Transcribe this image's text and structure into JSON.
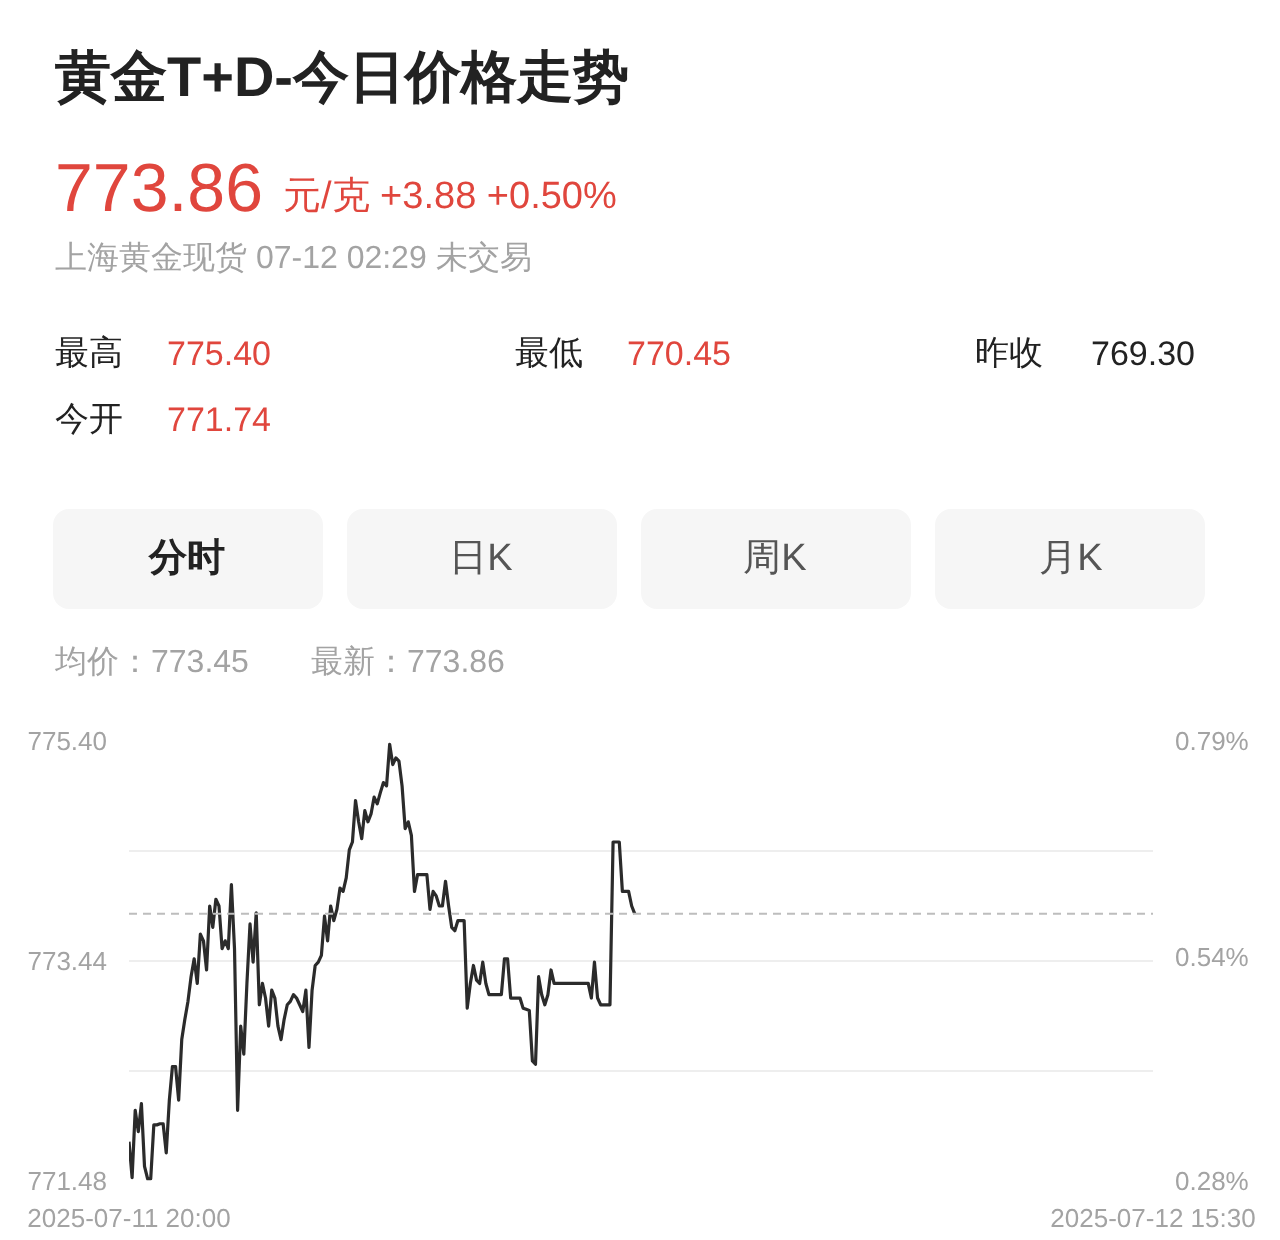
{
  "chart_data": {
    "type": "line",
    "title": "黄金T+D-今日价格走势",
    "subtitle": "上海黄金现货 07-12 02:29 未交易",
    "annotations": [
      "773.86",
      "元/克 +3.88 +0.50%",
      "最高",
      "775.40",
      "最低",
      "770.45",
      "昨收",
      "769.30",
      "今开",
      "771.74",
      "分时",
      "日K",
      "周K",
      "月K",
      "均价：773.45",
      "最新：773.86"
    ],
    "categories": [
      "2025-07-11 20:00",
      null,
      null,
      null,
      null,
      null,
      null,
      null,
      null,
      null,
      null,
      null,
      null,
      null,
      null,
      null,
      null,
      null,
      null,
      null,
      null,
      null,
      null,
      null,
      null,
      null,
      null,
      null,
      null,
      null,
      null,
      null,
      null,
      null,
      null,
      null,
      null,
      null,
      null,
      null,
      null,
      null,
      null,
      null,
      null,
      null,
      null,
      null,
      null,
      null,
      null,
      null,
      null,
      null,
      null,
      null,
      null,
      null,
      null,
      null,
      null,
      null,
      null,
      null,
      null,
      null,
      null,
      null,
      null,
      null,
      null,
      null,
      null,
      null,
      null,
      null,
      null,
      null,
      null,
      null,
      null,
      null,
      null,
      null,
      null,
      null,
      null,
      null,
      null,
      null,
      null,
      null,
      null,
      null,
      null,
      null,
      null,
      null,
      null,
      null,
      null,
      null,
      null,
      null,
      null,
      null,
      null,
      null,
      null,
      null,
      null,
      null,
      null,
      null,
      null,
      null,
      null,
      null,
      null,
      null,
      null,
      null,
      null,
      null,
      null,
      null,
      null,
      null,
      null,
      null,
      null,
      null,
      null,
      null,
      null,
      null,
      null,
      null,
      null,
      null,
      null,
      null,
      null,
      null,
      null,
      null,
      null,
      null,
      null,
      null,
      null,
      null,
      null,
      null,
      null,
      null,
      null,
      null,
      null,
      null,
      null,
      null,
      null,
      null,
      null,
      null,
      null,
      null,
      null,
      null,
      null,
      null,
      null,
      null,
      null,
      null,
      null,
      null,
      null,
      null,
      null,
      null,
      null,
      null,
      null,
      null,
      null,
      null,
      null,
      null,
      null,
      null,
      null,
      null,
      null,
      null,
      null,
      null,
      null,
      null,
      null,
      null,
      null,
      null,
      null,
      null,
      null,
      null,
      null,
      null,
      null,
      null,
      null,
      null,
      null,
      null,
      null,
      null,
      null,
      null,
      null,
      null,
      null,
      null,
      null,
      null,
      null,
      null,
      null,
      null,
      null,
      null,
      null,
      null,
      null,
      null,
      null,
      null,
      null,
      null,
      null,
      null,
      null,
      null,
      null,
      null,
      null,
      null,
      null,
      null,
      null,
      null,
      null,
      null,
      null,
      null,
      null,
      null,
      null,
      null,
      null,
      null,
      null,
      null,
      null,
      null,
      null,
      null,
      null,
      null,
      null,
      null,
      null,
      null,
      null,
      null,
      null,
      null,
      null,
      null,
      null,
      null,
      null,
      null,
      null,
      null,
      null,
      null,
      null,
      null,
      null,
      null,
      null,
      null,
      null,
      null,
      null,
      null,
      null,
      null,
      null,
      null,
      null,
      null,
      null,
      null,
      null,
      null,
      null,
      null,
      null,
      null,
      null,
      null,
      null,
      null,
      null,
      null,
      null,
      null,
      null,
      null,
      null,
      null,
      null,
      null,
      null,
      null,
      null,
      null,
      "2025-07-12 15:30"
    ],
    "values": [
      771.83,
      771.51,
      772.11,
      771.92,
      772.17,
      771.61,
      771.5,
      771.5,
      771.98,
      771.98,
      771.99,
      771.99,
      771.73,
      772.2,
      772.5,
      772.5,
      772.2,
      772.74,
      772.92,
      773.08,
      773.3,
      773.46,
      773.24,
      773.68,
      773.62,
      773.36,
      773.93,
      773.74,
      773.99,
      773.93,
      773.55,
      773.62,
      773.55,
      774.12,
      773.55,
      772.11,
      772.86,
      772.61,
      773.24,
      773.77,
      773.43,
      773.87,
      773.05,
      773.24,
      773.11,
      772.86,
      773.18,
      773.11,
      772.86,
      772.74,
      772.92,
      773.05,
      773.08,
      773.14,
      773.11,
      773.05,
      772.99,
      773.18,
      772.67,
      773.18,
      773.4,
      773.43,
      773.49,
      773.84,
      773.62,
      773.93,
      773.8,
      773.9,
      774.09,
      774.06,
      774.18,
      774.43,
      774.5,
      774.87,
      774.68,
      774.53,
      774.78,
      774.68,
      774.75,
      774.9,
      774.84,
      774.94,
      775.03,
      775.0,
      775.37,
      775.19,
      775.25,
      775.22,
      775.0,
      774.62,
      774.68,
      774.56,
      774.06,
      774.21,
      774.21,
      774.21,
      774.21,
      773.9,
      774.06,
      774.02,
      773.93,
      773.93,
      774.15,
      773.93,
      773.74,
      773.71,
      773.8,
      773.8,
      773.8,
      773.02,
      773.24,
      773.4,
      773.27,
      773.24,
      773.43,
      773.24,
      773.14,
      773.14,
      773.14,
      773.14,
      773.14,
      773.46,
      773.46,
      773.11,
      773.11,
      773.11,
      773.11,
      773.02,
      773.01,
      773.0,
      772.55,
      772.52,
      773.3,
      773.14,
      773.05,
      773.14,
      773.36,
      773.24,
      773.24,
      773.24,
      773.24,
      773.24,
      773.24,
      773.24,
      773.24,
      773.24,
      773.24,
      773.24,
      773.24,
      773.11,
      773.43,
      773.11,
      773.05,
      773.05,
      773.05,
      773.05,
      774.5,
      774.5,
      774.5,
      774.06,
      774.06,
      774.06,
      773.93,
      773.86,
      null,
      null,
      null,
      null,
      null,
      null,
      null,
      null,
      null,
      null,
      null,
      null,
      null,
      null,
      null,
      null,
      null,
      null,
      null,
      null,
      null,
      null,
      null,
      null,
      null,
      null,
      null,
      null,
      null,
      null,
      null,
      null,
      null,
      null,
      null,
      null,
      null,
      null,
      null,
      null,
      null,
      null,
      null,
      null,
      null,
      null,
      null,
      null,
      null,
      null,
      null,
      null,
      null,
      null,
      null,
      null,
      null,
      null,
      null,
      null,
      null,
      null,
      null,
      null,
      null,
      null,
      null,
      null,
      null,
      null,
      null,
      null,
      null,
      null,
      null,
      null,
      null,
      null,
      null,
      null,
      null,
      null,
      null,
      null,
      null,
      null,
      null,
      null,
      null,
      null,
      null,
      null,
      null,
      null,
      null,
      null,
      null,
      null,
      null,
      null,
      null,
      null,
      null,
      null,
      null,
      null,
      null,
      null,
      null,
      null,
      null,
      null,
      null,
      null,
      null,
      null,
      null,
      null,
      null,
      null,
      null,
      null,
      null,
      null,
      null,
      null,
      null,
      null,
      null,
      null,
      null,
      null,
      null,
      null,
      null,
      null,
      null,
      null,
      null,
      null,
      null,
      null,
      null,
      null,
      null,
      null,
      null,
      null,
      null,
      null,
      null,
      null,
      null,
      null,
      null,
      null,
      null,
      null,
      null,
      null,
      null,
      null,
      null,
      null,
      null,
      null,
      null
    ],
    "color": "#2b2b2b",
    "ylim": [
      771.48,
      775.4
    ],
    "yticks": [
      {
        "value": 771.48,
        "label": "771.48"
      },
      {
        "value": 772.46,
        "label": null
      },
      {
        "value": 773.44,
        "label": "773.44"
      },
      {
        "value": 774.42,
        "label": null
      },
      {
        "value": 775.4,
        "label": "775.40"
      }
    ],
    "y2lim": [
      0.28,
      0.79
    ],
    "y2ticks": [
      {
        "value": 0.28,
        "label": "0.28%"
      },
      {
        "value": 0.54,
        "label": "0.54%"
      },
      {
        "value": 0.79,
        "label": "0.79%"
      }
    ],
    "grid": "y",
    "ref_lines": [
      {
        "axis": "y",
        "value": 773.86,
        "color": "#bdbdbd",
        "line_style": "dashed"
      }
    ]
  }
}
